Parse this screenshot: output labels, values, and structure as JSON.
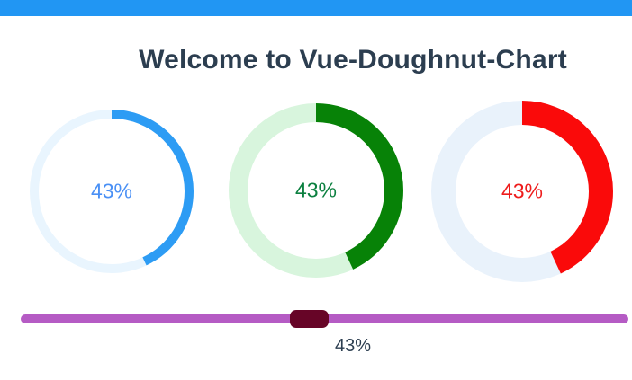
{
  "page": {
    "title": "Welcome to Vue-Doughnut-Chart",
    "topbar_color": "#2196f3",
    "text_color": "#2c3e50",
    "background_color": "#ffffff"
  },
  "chart_data": {
    "type": "doughnut-group",
    "percent": 43,
    "charts": [
      {
        "name": "blue-doughnut",
        "label": "43%",
        "percent": 43,
        "foreground_color": "#2d9cf4",
        "background_color": "#e9f5fe",
        "text_color": "#4a90f5",
        "size": 182,
        "stroke": 10
      },
      {
        "name": "green-doughnut",
        "label": "43%",
        "percent": 43,
        "foreground_color": "#078207",
        "background_color": "#d8f5dd",
        "text_color": "#0c8040",
        "size": 194,
        "stroke": 21
      },
      {
        "name": "red-doughnut",
        "label": "43%",
        "percent": 43,
        "foreground_color": "#fa0a0a",
        "background_color": "#e9f2fb",
        "text_color": "#ee1c1c",
        "size": 202,
        "stroke": 27
      }
    ]
  },
  "slider": {
    "value": 43,
    "min": 0,
    "max": 100,
    "label": "43%",
    "track_color": "#b55bc4",
    "thumb_color": "#670527"
  }
}
